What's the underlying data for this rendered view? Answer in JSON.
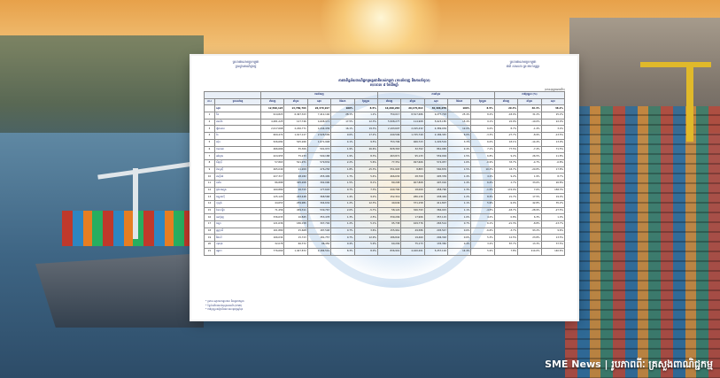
{
  "caption": "SME News | រូបភាពពីៈ គ្រសួងពាណិជ្ជកម្ម",
  "document": {
    "header_left": [
      "ព្រះរាជាណាចក្រកម្ពុជា",
      "ក្រសួងពាណិជ្ជកម្ម"
    ],
    "header_right": [
      "ព្រះរាជាណាចក្រកម្ពុជា",
      "ជាតិ សាសនា ព្រះមហាក្សត្រ"
    ],
    "title_lines": [
      "តារាងទិន្នន័យពាណិជ្ជកម្មអន្តរជាតិរបស់កម្ពុជា (ការនាំចេញ និងការនាំចូល)",
      "រយៈពេល ៨ ខែដើមឆ្នាំ"
    ],
    "unit_note": "(លានដុល្លារអាមេរិក)",
    "group_headers": [
      "",
      "",
      "ការនាំចេញ",
      "ការនាំចូល",
      "ការប្រែប្រួល (%)"
    ],
    "column_headers": [
      "ល.រ",
      "ប្រទេសដៃគូ",
      "នាំចេញ",
      "នាំចូល",
      "សរុប",
      "ចំណែក",
      "ប្រែប្រួល",
      "នាំចេញ",
      "នាំចូល",
      "សរុប",
      "ចំណែក",
      "ប្រែប្រួល",
      "នាំចេញ",
      "នាំចូល",
      "សរុប"
    ],
    "total_row": [
      "",
      "សរុប",
      "12,590,123",
      "13,789,794",
      "26,379,917",
      "100%",
      "8.5%",
      "16,290,264",
      "20,175,814",
      "36,466,078",
      "100%",
      "8.5%",
      "29.3%",
      "46.3%",
      "38.2%"
    ],
    "rows": [
      [
        "1",
        "ចិន",
        "914,823",
        "6,497,323",
        "7,412,146",
        "28.1%",
        "1.2%",
        "750,017",
        "8,527,686",
        "9,277,703",
        "25.4%",
        "8.2%",
        "-18.0%",
        "31.2%",
        "25.2%"
      ],
      [
        "2",
        "អាមេរិក",
        "4,481,225",
        "127,746",
        "4,608,971",
        "17.5%",
        "12.3%",
        "5,508,277",
        "114,908",
        "5,623,185",
        "15.4%",
        "9.1%",
        "22.9%",
        "-10.0%",
        "22.0%"
      ],
      [
        "3",
        "វៀតណាម",
        "2,017,668",
        "2,226,771",
        "4,244,439",
        "16.1%",
        "19.3%",
        "2,193,607",
        "2,195,432",
        "4,389,039",
        "12.0%",
        "6.0%",
        "8.7%",
        "-1.4%",
        "3.4%"
      ],
      [
        "4",
        "ថៃ",
        "609,472",
        "1,917,127",
        "2,526,599",
        "9.6%",
        "17.2%",
        "440,596",
        "1,745,749",
        "2,186,345",
        "6.0%",
        "-3.3%",
        "-27.7%",
        "-8.9%",
        "-13.5%"
      ],
      [
        "5",
        "ជប៉ុន",
        "526,682",
        "545,266",
        "1,071,948",
        "4.1%",
        "9.5%",
        "753,796",
        "466,723",
        "1,220,519",
        "3.3%",
        "6.0%",
        "43.1%",
        "-14.4%",
        "13.9%"
      ],
      [
        "6",
        "កាណាដា",
        "466,666",
        "35,306",
        "501,972",
        "1.9%",
        "26.6%",
        "828,363",
        "32,702",
        "861,065",
        "2.4%",
        "7.1%",
        "77.5%",
        "-7.4%",
        "71.5%"
      ],
      [
        "7",
        "អង់គ្លេស",
        "424,955",
        "75,233",
        "500,188",
        "1.9%",
        "8.3%",
        "463,871",
        "95,133",
        "559,004",
        "1.5%",
        "6.8%",
        "9.2%",
        "26.5%",
        "11.8%"
      ],
      [
        "8",
        "សិង្ហបុរី",
        "57,863",
        "521,971",
        "579,834",
        "2.2%",
        "5.6%",
        "77,351",
        "497,606",
        "574,957",
        "1.6%",
        "-0.9%",
        "33.7%",
        "-4.7%",
        "-0.8%"
      ],
      [
        "9",
        "ម៉ាឡេស៊ី",
        "465,049",
        "11,209",
        "476,258",
        "1.8%",
        "-15.3%",
        "551,993",
        "8,883",
        "560,876",
        "1.5%",
        "10.3%",
        "18.7%",
        "-20.8%",
        "17.8%"
      ],
      [
        "10",
        "អាល្លឺម៉ង់",
        "427,317",
        "28,182",
        "455,499",
        "1.7%",
        "5.4%",
        "466,630",
        "28,709",
        "495,339",
        "1.4%",
        "4.1%",
        "9.2%",
        "1.9%",
        "8.7%"
      ],
      [
        "11",
        "បារាំង",
        "86,888",
        "305,208",
        "392,096",
        "1.5%",
        "8.1%",
        "89,208",
        "407,808",
        "497,016",
        "1.4%",
        "6.4%",
        "2.7%",
        "33.6%",
        "26.8%"
      ],
      [
        "12",
        "កូរ៉េខាងត្បូង",
        "160,880",
        "16,723",
        "177,603",
        "0.7%",
        "7.3%",
        "440,790",
        "18,000",
        "458,790",
        "1.3%",
        "-1.5%",
        "174.0%",
        "7.6%",
        "158.3%"
      ],
      [
        "13",
        "ឥណ្ឌូនេស៊ី",
        "125,120",
        "243,448",
        "368,568",
        "1.4%",
        "9.2%",
        "152,319",
        "286,130",
        "438,449",
        "1.2%",
        "8.3%",
        "21.7%",
        "17.5%",
        "19.0%"
      ],
      [
        "14",
        "ហូឡង់",
        "44,653",
        "259,981",
        "304,634",
        "1.2%",
        "12.3%",
        "40,649",
        "371,158",
        "411,807",
        "1.1%",
        "5.9%",
        "-9.0%",
        "42.8%",
        "35.2%"
      ],
      [
        "15",
        "បែលហ្ស៊ិក",
        "71,456",
        "459,311",
        "530,767",
        "2.0%",
        "-5.7%",
        "58,122",
        "326,793",
        "384,915",
        "1.1%",
        "-4.5%",
        "-18.7%",
        "-28.9%",
        "-27.5%"
      ],
      [
        "16",
        "អេស្ប៉ាញ",
        "336,633",
        "16,845",
        "353,478",
        "1.3%",
        "2.5%",
        "339,209",
        "17,906",
        "357,115",
        "1.0%",
        "4.2%",
        "0.8%",
        "6.3%",
        "1.0%"
      ],
      [
        "17",
        "ឥណ្ឌា",
        "121,636",
        "186,158",
        "307,794",
        "1.2%",
        "5.1%",
        "95,738",
        "169,776",
        "265,514",
        "0.7%",
        "6.1%",
        "-21.3%",
        "-8.8%",
        "-13.7%"
      ],
      [
        "18",
        "អូស្ត្រាលី",
        "161,880",
        "25,668",
        "187,548",
        "0.7%",
        "3.6%",
        "155,961",
        "49,586",
        "205,547",
        "0.6%",
        "-6.6%",
        "-3.7%",
        "93.2%",
        "9.6%"
      ],
      [
        "19",
        "អ៊ីតាលី",
        "166,034",
        "15,723",
        "181,757",
        "0.7%",
        "12.9%",
        "186,842",
        "19,460",
        "206,302",
        "0.6%",
        "5.3%",
        "12.5%",
        "23.8%",
        "13.5%"
      ],
      [
        "20",
        "ហុងកុង",
        "32,078",
        "66,372",
        "98,450",
        "0.4%",
        "5.9%",
        "60,209",
        "75,173",
        "135,382",
        "0.4%",
        "3.2%",
        "87.7%",
        "13.3%",
        "37.5%"
      ],
      [
        "21",
        "ផ្សេងៗ",
        "776,669",
        "1,407,872",
        "2,184,541",
        "8.3%",
        "8.0%",
        "836,901",
        "4,420,201",
        "5,257,102",
        "14.4%",
        "5.9%",
        "7.8%",
        "214.0%",
        "140.6%"
      ]
    ],
    "notes": [
      "* ប្រភព៖ អគ្គនាយកដ្ឋានគយ និងរដ្ឋាករកម្ពុជា",
      "* ទិន្នន័យគិតជាពាន់ដុល្លារអាមេរិក (USD)",
      "* ការប្រែប្រួលធៀបនឹងរយៈពេលដូចគ្នាឆ្នាំមុន"
    ]
  }
}
